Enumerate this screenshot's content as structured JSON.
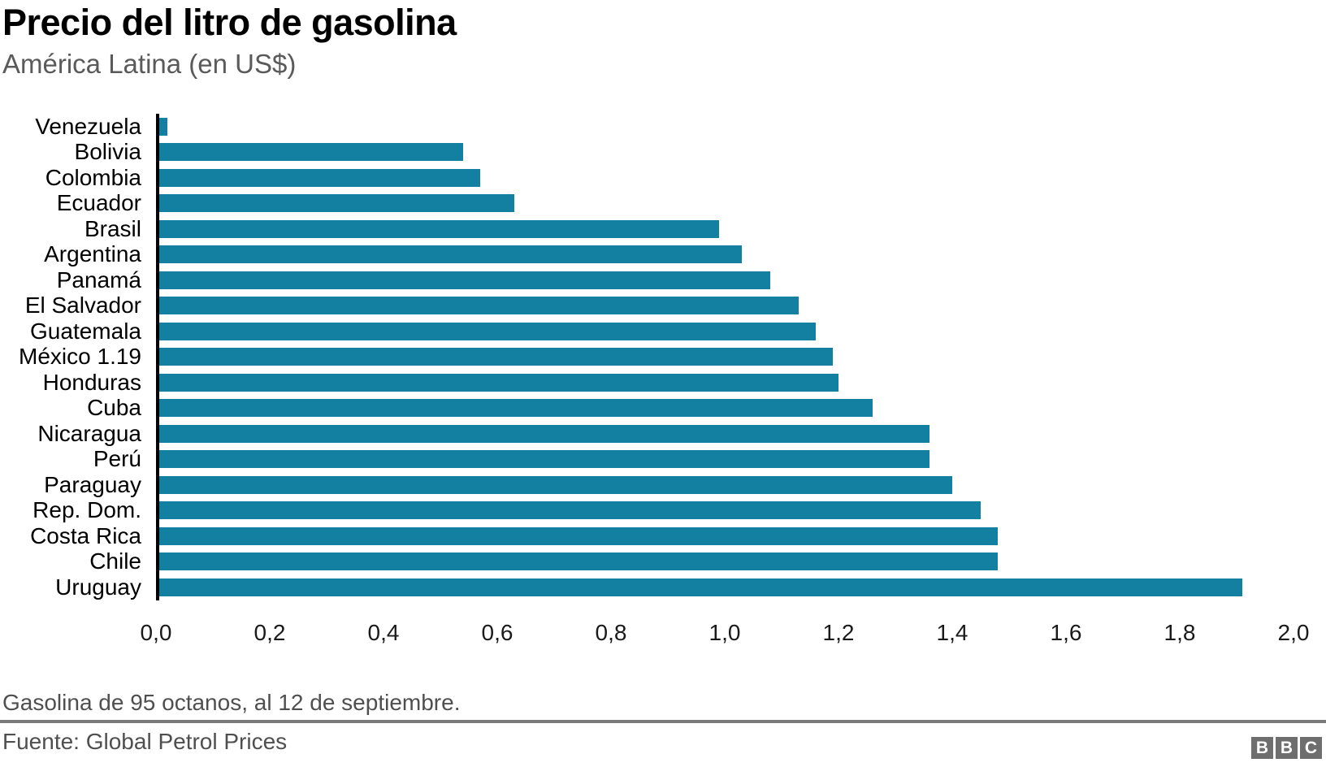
{
  "header": {
    "title": "Precio del litro de gasolina",
    "subtitle": "América Latina (en US$)"
  },
  "chart_data": {
    "type": "bar",
    "orientation": "horizontal",
    "title": "Precio del litro de gasolina",
    "subtitle": "América Latina (en US$)",
    "categories": [
      "Venezuela",
      "Bolivia",
      "Colombia",
      "Ecuador",
      "Brasil",
      "Argentina",
      "Panamá",
      "El Salvador",
      "Guatemala",
      "México 1.19",
      "Honduras",
      "Cuba",
      "Nicaragua",
      "Perú",
      "Paraguay",
      "Rep. Dom.",
      "Costa Rica",
      "Chile",
      "Uruguay"
    ],
    "values": [
      0.02,
      0.54,
      0.57,
      0.63,
      0.99,
      1.03,
      1.08,
      1.13,
      1.16,
      1.19,
      1.2,
      1.26,
      1.36,
      1.36,
      1.4,
      1.45,
      1.48,
      1.48,
      1.91
    ],
    "xlabel": "",
    "ylabel": "",
    "xlim": [
      0.0,
      2.0
    ],
    "x_ticks": [
      "0,0",
      "0,2",
      "0,4",
      "0,6",
      "0,8",
      "1,0",
      "1,2",
      "1,4",
      "1,6",
      "1,8",
      "2,0"
    ],
    "tick_step": 0.2,
    "grid": false,
    "legend": "none",
    "annotated_label": "México 1.19"
  },
  "colors": {
    "bar": "#1380a1",
    "axis": "#000000",
    "subtitle_text": "#5a5a5a",
    "footer_text": "#4f4f4f",
    "divider": "#7a7a7a",
    "logo_background": "#6e6e6e"
  },
  "footer": {
    "note": "Gasolina de 95 octanos, al 12 de septiembre.",
    "source": "Fuente: Global Petrol Prices",
    "logo_letters": [
      "B",
      "B",
      "C"
    ]
  }
}
